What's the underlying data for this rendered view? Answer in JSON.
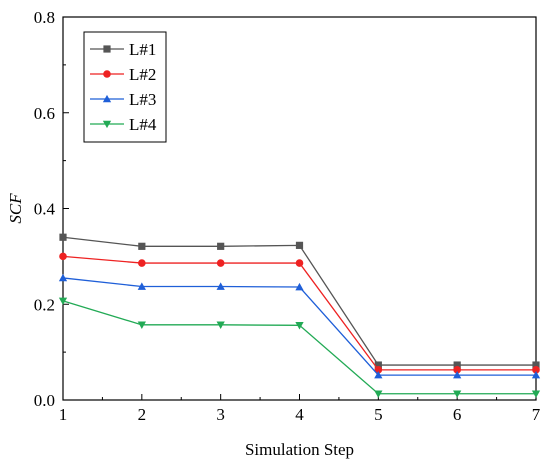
{
  "chart_data": {
    "type": "line",
    "title": "",
    "xlabel": "Simulation Step",
    "ylabel": "SCF",
    "x": [
      1,
      2,
      3,
      4,
      5,
      6,
      7
    ],
    "xlim": [
      1,
      7
    ],
    "ylim": [
      0.0,
      0.8
    ],
    "xticks": [
      1,
      2,
      3,
      4,
      5,
      6,
      7
    ],
    "yticks": [
      "0.0",
      "0.2",
      "0.4",
      "0.6",
      "0.8"
    ],
    "grid": false,
    "legend_position": "top-left",
    "series": [
      {
        "name": "L#1",
        "color": "#555555",
        "marker": "square",
        "values": [
          0.34,
          0.321,
          0.321,
          0.323,
          0.073,
          0.073,
          0.073
        ]
      },
      {
        "name": "L#2",
        "color": "#ee2222",
        "marker": "circle",
        "values": [
          0.3,
          0.286,
          0.286,
          0.286,
          0.063,
          0.063,
          0.063
        ]
      },
      {
        "name": "L#3",
        "color": "#1f5fd8",
        "marker": "triangle-up",
        "values": [
          0.255,
          0.237,
          0.237,
          0.236,
          0.052,
          0.052,
          0.052
        ]
      },
      {
        "name": "L#4",
        "color": "#22aa55",
        "marker": "triangle-down",
        "values": [
          0.207,
          0.157,
          0.157,
          0.156,
          0.013,
          0.013,
          0.013
        ]
      }
    ]
  }
}
